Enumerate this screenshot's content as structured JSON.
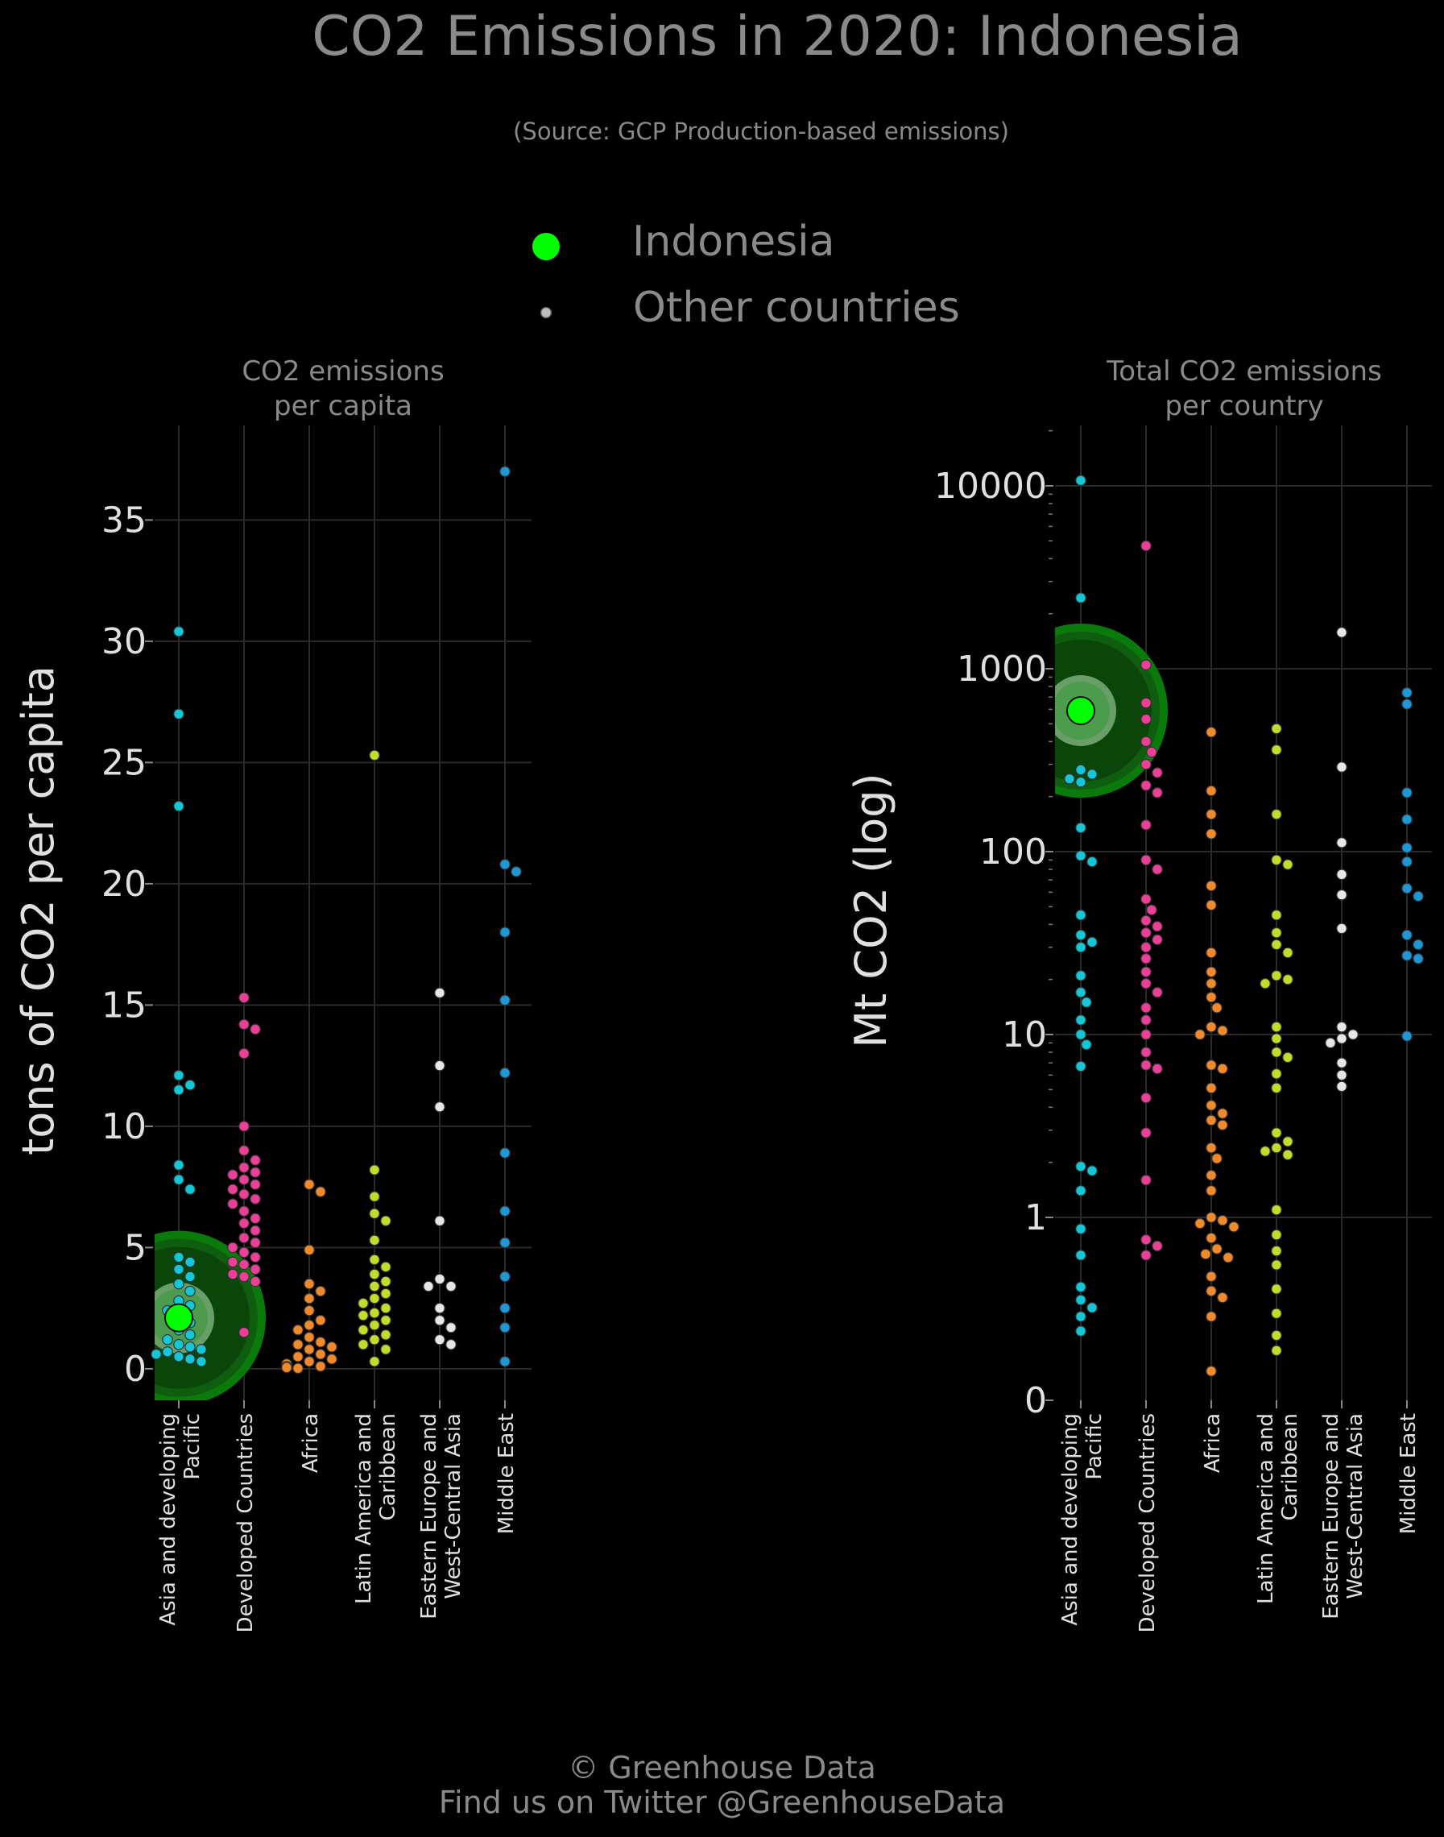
{
  "title": "CO2 Emissions in 2020: Indonesia",
  "subtitle": "(Source: GCP Production-based emissions)",
  "legend": {
    "highlight": "Indonesia",
    "others": "Other countries"
  },
  "colors": {
    "highlight": "#00ff00",
    "Asia and developing Pacific": "#12c8d8",
    "Developed Countries": "#ee3f98",
    "Africa": "#f28a2b",
    "Latin America and Caribbean": "#c3db2a",
    "Eastern Europe and West-Central Asia": "#e6e6e6",
    "Middle East": "#1d97d6",
    "other_legend": "#bfbfbf"
  },
  "footer": {
    "line1": "© Greenhouse Data",
    "line2": "Find us on Twitter @GreenhouseData"
  },
  "chart_data": [
    {
      "type": "scatter",
      "panel_title": [
        "CO2 emissions",
        "per capita"
      ],
      "ylabel": "tons of CO2 per capita",
      "scale": "linear",
      "ylim": [
        -1.3,
        38.9
      ],
      "yticks": [
        0,
        5,
        10,
        15,
        20,
        25,
        30,
        35
      ],
      "ytick_labels": [
        "0",
        "5",
        "10",
        "15",
        "20",
        "25",
        "30",
        "35"
      ],
      "grid": true,
      "categories": [
        "Asia and developing Pacific",
        "Developed Countries",
        "Africa",
        "Latin America and Caribbean",
        "Eastern Europe and West-Central Asia",
        "Middle East"
      ],
      "category_labels": [
        [
          "Asia and developing",
          "Pacific"
        ],
        [
          "Developed Countries"
        ],
        [
          "Africa"
        ],
        [
          "Latin America and",
          "Caribbean"
        ],
        [
          "Eastern Europe and",
          "West-Central Asia"
        ],
        [
          "Middle East"
        ]
      ],
      "highlight": {
        "name": "Indonesia",
        "category": "Asia and developing Pacific",
        "value": 2.1
      },
      "series": [
        {
          "name": "Asia and developing Pacific",
          "values": [
            30.4,
            27.0,
            23.2,
            12.1,
            11.7,
            11.5,
            8.4,
            7.8,
            7.4,
            4.6,
            4.4,
            4.1,
            3.8,
            3.5,
            3.2,
            2.8,
            2.6,
            2.4,
            2.2,
            1.9,
            1.6,
            1.4,
            1.2,
            1.0,
            0.9,
            0.8,
            0.7,
            0.6,
            0.5,
            0.4,
            0.3
          ]
        },
        {
          "name": "Developed Countries",
          "values": [
            15.3,
            14.2,
            14.0,
            13.0,
            10.0,
            9.0,
            8.6,
            8.3,
            8.1,
            8.0,
            7.8,
            7.6,
            7.4,
            7.2,
            7.0,
            6.8,
            6.5,
            6.2,
            6.0,
            5.7,
            5.4,
            5.2,
            5.0,
            4.8,
            4.6,
            4.4,
            4.3,
            4.1,
            3.9,
            3.8,
            3.6,
            1.5
          ]
        },
        {
          "name": "Africa",
          "values": [
            7.6,
            7.3,
            4.9,
            3.5,
            3.2,
            2.9,
            2.4,
            2.0,
            1.8,
            1.6,
            1.3,
            1.1,
            1.0,
            0.9,
            0.8,
            0.6,
            0.5,
            0.4,
            0.3,
            0.2,
            0.2,
            0.1,
            0.1,
            0.05,
            0.02
          ]
        },
        {
          "name": "Latin America and Caribbean",
          "values": [
            25.3,
            8.2,
            7.1,
            6.4,
            6.1,
            5.3,
            4.5,
            4.2,
            3.9,
            3.6,
            3.4,
            3.1,
            2.9,
            2.7,
            2.5,
            2.3,
            2.2,
            2.0,
            1.8,
            1.6,
            1.4,
            1.2,
            1.0,
            0.8,
            0.3
          ]
        },
        {
          "name": "Eastern Europe and West-Central Asia",
          "values": [
            15.5,
            12.5,
            10.8,
            6.1,
            3.7,
            3.4,
            3.4,
            2.5,
            2.0,
            1.7,
            1.2,
            1.0
          ]
        },
        {
          "name": "Middle East",
          "values": [
            37.0,
            20.8,
            20.5,
            18.0,
            15.2,
            12.2,
            8.9,
            6.5,
            5.2,
            3.8,
            2.5,
            1.7,
            0.3
          ]
        }
      ]
    },
    {
      "type": "scatter",
      "panel_title": [
        "Total CO2 emissions",
        "per country"
      ],
      "ylabel": "Mt CO2 (log)",
      "scale": "log",
      "ylim": [
        0,
        20000
      ],
      "yticks": [
        0,
        1,
        10,
        100,
        1000,
        10000
      ],
      "ytick_labels": [
        "0",
        "1",
        "10",
        "100",
        "1000",
        "10000"
      ],
      "grid": true,
      "categories": [
        "Asia and developing Pacific",
        "Developed Countries",
        "Africa",
        "Latin America and Caribbean",
        "Eastern Europe and West-Central Asia",
        "Middle East"
      ],
      "category_labels": [
        [
          "Asia and developing",
          "Pacific"
        ],
        [
          "Developed Countries"
        ],
        [
          "Africa"
        ],
        [
          "Latin America and",
          "Caribbean"
        ],
        [
          "Eastern Europe and",
          "West-Central Asia"
        ],
        [
          "Middle East"
        ]
      ],
      "highlight": {
        "name": "Indonesia",
        "category": "Asia and developing Pacific",
        "value": 590
      },
      "series": [
        {
          "name": "Asia and developing Pacific",
          "values": [
            10700,
            2440,
            280,
            265,
            250,
            240,
            135,
            95,
            88,
            45,
            35,
            32,
            30,
            21,
            17,
            15,
            12,
            10,
            8.8,
            6.7,
            1.9,
            1.8,
            1.4,
            0.82,
            0.52,
            0.3,
            0.24,
            0.21,
            0.18,
            0.14
          ]
        },
        {
          "name": "Developed Countries",
          "values": [
            4700,
            1050,
            650,
            530,
            400,
            350,
            300,
            270,
            230,
            210,
            140,
            90,
            80,
            55,
            48,
            42,
            39,
            36,
            33,
            30,
            26,
            22,
            19,
            17,
            14,
            12,
            10,
            8,
            6.8,
            6.5,
            4.5,
            2.9,
            1.6,
            0.68,
            0.61,
            0.52
          ]
        },
        {
          "name": "Africa",
          "values": [
            450,
            215,
            160,
            125,
            65,
            51,
            28,
            22,
            19,
            16,
            14,
            11,
            10.5,
            10,
            6.8,
            6.5,
            5.1,
            4.1,
            3.7,
            3.4,
            3.2,
            2.4,
            2.1,
            1.7,
            1.4,
            1.0,
            0.95,
            0.9,
            0.85,
            0.7,
            0.58,
            0.53,
            0.5,
            0.36,
            0.28,
            0.25,
            0.18,
            0.07
          ]
        },
        {
          "name": "Latin America and Caribbean",
          "values": [
            470,
            360,
            160,
            90,
            85,
            45,
            36,
            31,
            28,
            21,
            20,
            19,
            11,
            9.5,
            8,
            7.5,
            6.1,
            5.1,
            2.9,
            2.6,
            2.4,
            2.3,
            2.2,
            1.1,
            0.74,
            0.56,
            0.44,
            0.29,
            0.19,
            0.13,
            0.1
          ]
        },
        {
          "name": "Eastern Europe and West-Central Asia",
          "values": [
            1580,
            290,
            112,
            75,
            58,
            38,
            11,
            10,
            9.5,
            9,
            7,
            6,
            5.2
          ]
        },
        {
          "name": "Middle East",
          "values": [
            740,
            640,
            210,
            150,
            105,
            88,
            63,
            57,
            35,
            31,
            27,
            26,
            9.8
          ]
        }
      ]
    }
  ]
}
